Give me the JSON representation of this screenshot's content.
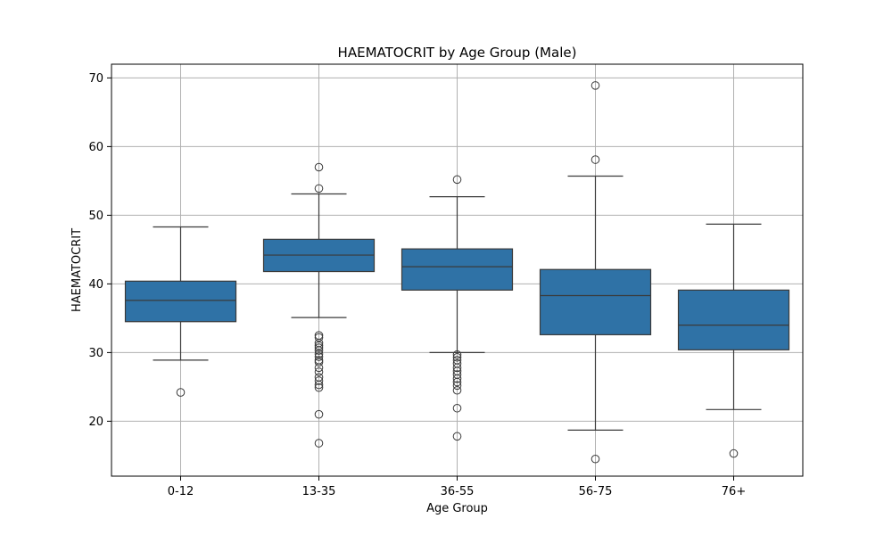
{
  "chart_data": {
    "type": "box",
    "title": "HAEMATOCRIT by Age Group (Male)",
    "xlabel": "Age Group",
    "ylabel": "HAEMATOCRIT",
    "ylim": [
      12,
      72
    ],
    "yticks": [
      20,
      30,
      40,
      50,
      60,
      70
    ],
    "grid": true,
    "color": "#2f72a6",
    "categories": [
      "0-12",
      "13-35",
      "36-55",
      "56-75",
      "76+"
    ],
    "boxes": [
      {
        "category": "0-12",
        "whisker_low": 28.9,
        "q1": 34.5,
        "median": 37.6,
        "q3": 40.4,
        "whisker_high": 48.3,
        "outliers": [
          24.2
        ]
      },
      {
        "category": "13-35",
        "whisker_low": 35.1,
        "q1": 41.8,
        "median": 44.2,
        "q3": 46.5,
        "whisker_high": 53.1,
        "outliers": [
          57.0,
          53.9,
          32.5,
          32.2,
          31.4,
          31.0,
          30.7,
          30.3,
          29.8,
          29.4,
          28.9,
          28.6,
          27.8,
          27.2,
          26.4,
          25.9,
          25.3,
          24.9,
          21.0,
          16.8
        ]
      },
      {
        "category": "36-55",
        "whisker_low": 30.0,
        "q1": 39.1,
        "median": 42.5,
        "q3": 45.1,
        "whisker_high": 52.7,
        "outliers": [
          55.2,
          29.7,
          29.3,
          28.9,
          28.4,
          27.8,
          27.3,
          26.8,
          26.2,
          25.7,
          25.2,
          24.5,
          21.9,
          17.8
        ]
      },
      {
        "category": "56-75",
        "whisker_low": 18.7,
        "q1": 32.6,
        "median": 38.3,
        "q3": 42.1,
        "whisker_high": 55.7,
        "outliers": [
          68.9,
          58.1,
          14.5
        ]
      },
      {
        "category": "76+",
        "whisker_low": 21.7,
        "q1": 30.4,
        "median": 34.0,
        "q3": 39.1,
        "whisker_high": 48.7,
        "outliers": [
          15.3
        ]
      }
    ]
  }
}
